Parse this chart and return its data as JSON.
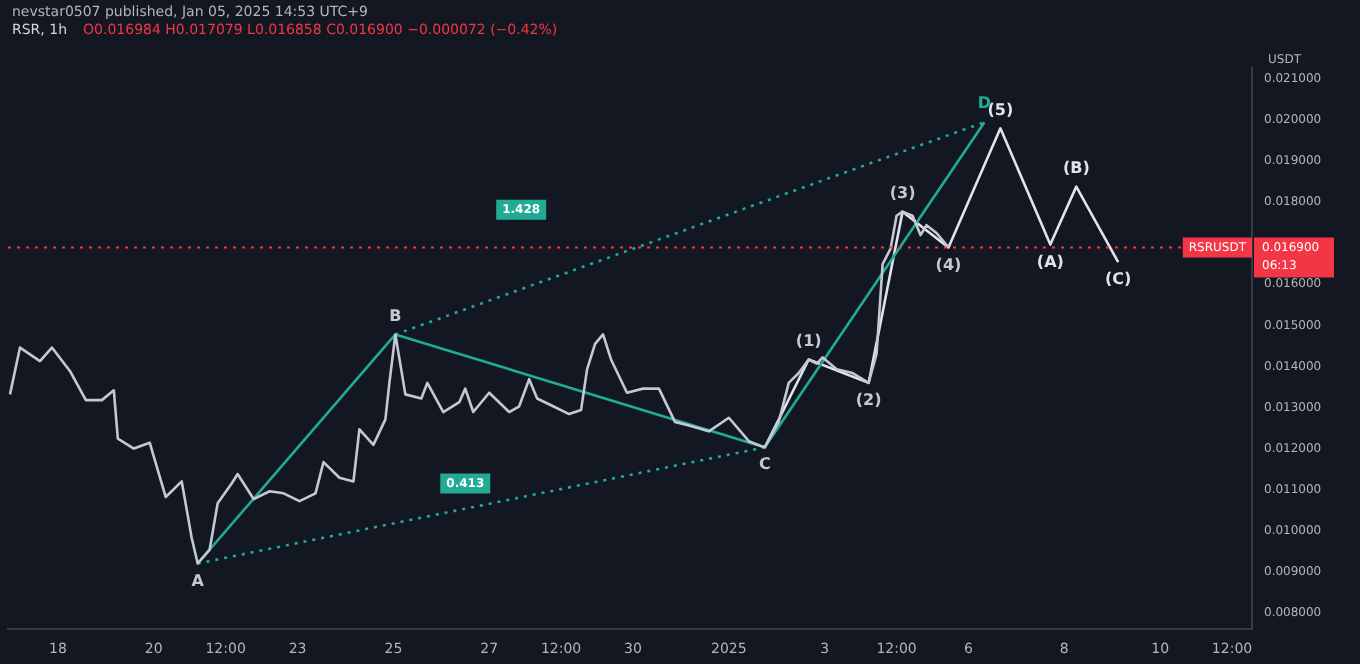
{
  "chart_data": {
    "type": "line",
    "title": "RSR, 1h",
    "subtitle": "O0.016984 H0.017079 L0.016858 C0.016900 −0.000072 (−0.42%)",
    "ylabel": "USDT",
    "annotations": [
      "nevstar0507 published, Jan 05, 2025 14:53 UTC+9",
      "0.016900",
      "06:13",
      {
        "text": "A",
        "x": "2024-12-20T22:00",
        "y": 0.0092
      },
      {
        "text": "B",
        "x": "2024-12-25T01:00",
        "y": 0.01478
      },
      {
        "text": "C",
        "x": "2025-01-01T18:00",
        "y": 0.01203
      },
      {
        "text": "D",
        "x": "2025-01-06T08:00",
        "y": 0.01995
      },
      {
        "text": "0.413",
        "x": "2024-12-26T12:00",
        "y": 0.01115
      },
      {
        "text": "1.428",
        "x": "2024-12-27T16:00",
        "y": 0.01782
      },
      {
        "text": "(1)",
        "x": "2025-01-02T16:00",
        "y": 0.01417
      },
      {
        "text": "(2)",
        "x": "2025-01-03T22:00",
        "y": 0.0136
      },
      {
        "text": "(3)",
        "x": "2025-01-04T15:00",
        "y": 0.01777
      },
      {
        "text": "(4)",
        "x": "2025-01-05T14:00",
        "y": 0.0169
      },
      {
        "text": "(5)",
        "x": "2025-01-06T16:00",
        "y": 0.0198
      },
      {
        "text": "(A)",
        "x": "2025-01-07T17:00",
        "y": 0.01697
      },
      {
        "text": "(B)",
        "x": "2025-01-08T06:00",
        "y": 0.01838
      },
      {
        "text": "(C)",
        "x": "2025-01-09T03:00",
        "y": 0.01654
      }
    ],
    "xlim": [
      "2024-12-16T23:00",
      "2025-01-11T22:00"
    ],
    "xticks": [
      {
        "value": "2024-12-18",
        "label": "18"
      },
      {
        "value": "2024-12-20",
        "label": "20"
      },
      {
        "value": "2024-12-21T12:00",
        "label": "12:00"
      },
      {
        "value": "2024-12-23",
        "label": "23"
      },
      {
        "value": "2024-12-25",
        "label": "25"
      },
      {
        "value": "2024-12-27",
        "label": "27"
      },
      {
        "value": "2024-12-28T12:00",
        "label": "12:00"
      },
      {
        "value": "2024-12-30",
        "label": "30"
      },
      {
        "value": "2025-01-01",
        "label": "2025"
      },
      {
        "value": "2025-01-03",
        "label": "3"
      },
      {
        "value": "2025-01-04T12:00",
        "label": "12:00"
      },
      {
        "value": "2025-01-06",
        "label": "6"
      },
      {
        "value": "2025-01-08",
        "label": "8"
      },
      {
        "value": "2025-01-10",
        "label": "10"
      },
      {
        "value": "2025-01-11T12:00",
        "label": "12:00"
      }
    ],
    "ylim": [
      0.0076,
      0.02127
    ],
    "yticks": [
      {
        "value": 0.008,
        "label": "0.008000"
      },
      {
        "value": 0.009,
        "label": "0.009000"
      },
      {
        "value": 0.01,
        "label": "0.010000"
      },
      {
        "value": 0.011,
        "label": "0.011000"
      },
      {
        "value": 0.012,
        "label": "0.012000"
      },
      {
        "value": 0.013,
        "label": "0.013000"
      },
      {
        "value": 0.014,
        "label": "0.014000"
      },
      {
        "value": 0.015,
        "label": "0.015000"
      },
      {
        "value": 0.016,
        "label": "0.016000"
      },
      {
        "value": 0.018,
        "label": "0.018000"
      },
      {
        "value": 0.019,
        "label": "0.019000"
      },
      {
        "value": 0.02,
        "label": "0.020000"
      },
      {
        "value": 0.021,
        "label": "0.021000"
      }
    ],
    "grid": false,
    "legend": false,
    "marker": "none",
    "ref_lines": [
      {
        "axis": "y",
        "value": 0.0169,
        "label": "RSRUSDT",
        "color": "#f23645",
        "line_style": "dotted"
      }
    ],
    "series": [
      {
        "color": "#c4c8d2",
        "x": [
          "2024-12-17T00:00",
          "2024-12-17T05:00",
          "2024-12-17T15:00",
          "2024-12-17T21:00",
          "2024-12-18T06:00",
          "2024-12-18T14:00",
          "2024-12-18T22:00",
          "2024-12-19T04:00",
          "2024-12-19T06:00",
          "2024-12-19T14:00",
          "2024-12-19T22:00",
          "2024-12-20T06:00",
          "2024-12-20T14:00",
          "2024-12-20T19:00",
          "2024-12-20T22:00",
          "2024-12-21T04:00",
          "2024-12-21T08:00",
          "2024-12-21T15:00",
          "2024-12-21T18:00",
          "2024-12-22T02:00",
          "2024-12-22T10:00",
          "2024-12-22T17:00",
          "2024-12-23T01:00",
          "2024-12-23T09:00",
          "2024-12-23T13:00",
          "2024-12-23T21:00",
          "2024-12-24T04:00",
          "2024-12-24T07:00",
          "2024-12-24T14:00",
          "2024-12-24T20:00",
          "2024-12-24T22:00",
          "2024-12-25T01:00",
          "2024-12-25T06:00",
          "2024-12-25T14:00",
          "2024-12-25T17:00",
          "2024-12-26T01:00",
          "2024-12-26T09:00",
          "2024-12-26T12:00",
          "2024-12-26T16:00",
          "2024-12-27T00:00",
          "2024-12-27T10:00",
          "2024-12-27T15:00",
          "2024-12-27T20:00",
          "2024-12-28T00:00",
          "2024-12-28T08:00",
          "2024-12-28T16:00",
          "2024-12-28T22:00",
          "2024-12-29T01:00",
          "2024-12-29T05:00",
          "2024-12-29T09:00",
          "2024-12-29T13:00",
          "2024-12-29T21:00",
          "2024-12-30T05:00",
          "2024-12-30T13:00",
          "2024-12-30T21:00",
          "2024-12-31T04:00",
          "2024-12-31T14:00",
          "2025-01-01T00:00",
          "2025-01-01T10:00",
          "2025-01-01T18:00",
          "2025-01-02T01:00",
          "2025-01-02T06:00",
          "2025-01-02T11:00",
          "2025-01-02T16:00",
          "2025-01-02T20:00",
          "2025-01-02T23:00",
          "2025-01-03T06:00",
          "2025-01-03T14:00",
          "2025-01-03T22:00",
          "2025-01-04T02:00",
          "2025-01-04T05:00",
          "2025-01-04T09:00",
          "2025-01-04T12:00",
          "2025-01-04T15:00",
          "2025-01-04T20:00",
          "2025-01-05T00:00",
          "2025-01-05T03:00",
          "2025-01-05T08:00",
          "2025-01-05T14:00"
        ],
        "values": [
          0.01332,
          0.01446,
          0.01413,
          0.01446,
          0.01389,
          0.01318,
          0.01318,
          0.01342,
          0.01224,
          0.012,
          0.01214,
          0.01082,
          0.0112,
          0.00982,
          0.0092,
          0.00954,
          0.01067,
          0.01115,
          0.01138,
          0.01077,
          0.01096,
          0.01091,
          0.01072,
          0.01091,
          0.01167,
          0.01129,
          0.0112,
          0.01247,
          0.01209,
          0.01271,
          0.0136,
          0.01478,
          0.01332,
          0.01322,
          0.0136,
          0.01289,
          0.01313,
          0.01346,
          0.01289,
          0.01336,
          0.01289,
          0.01303,
          0.01369,
          0.01322,
          0.01303,
          0.01284,
          0.01294,
          0.01393,
          0.01455,
          0.01478,
          0.01417,
          0.01336,
          0.01346,
          0.01346,
          0.01265,
          0.01256,
          0.01242,
          0.01275,
          0.01218,
          0.01203,
          0.01265,
          0.0136,
          0.01384,
          0.01417,
          0.01407,
          0.01422,
          0.01393,
          0.01384,
          0.0136,
          0.01431,
          0.01649,
          0.01687,
          0.01767,
          0.01777,
          0.01767,
          0.0172,
          0.01744,
          0.01725,
          0.0169
        ]
      },
      {
        "color": "#22ab94",
        "x": [
          "2024-12-20T22:00",
          "2024-12-25T01:00",
          "2025-01-01T18:00",
          "2025-01-06T08:00"
        ],
        "values": [
          0.0092,
          0.01478,
          0.01203,
          0.01995
        ]
      },
      {
        "color": "#22ab94",
        "line_style": "dotted",
        "x": [
          "2024-12-20T22:00",
          "2025-01-01T18:00"
        ],
        "values": [
          0.0092,
          0.01203
        ]
      },
      {
        "color": "#22ab94",
        "line_style": "dotted",
        "x": [
          "2024-12-25T01:00",
          "2025-01-06T08:00"
        ],
        "values": [
          0.01478,
          0.01995
        ]
      },
      {
        "color": "#e0e3eb",
        "x": [
          "2025-01-01T18:00",
          "2025-01-02T16:00",
          "2025-01-03T22:00",
          "2025-01-04T15:00",
          "2025-01-05T14:00",
          "2025-01-06T16:00",
          "2025-01-07T17:00",
          "2025-01-08T06:00",
          "2025-01-09T03:00"
        ],
        "values": [
          0.01203,
          0.01417,
          0.0136,
          0.01777,
          0.0169,
          0.0198,
          0.01697,
          0.01838,
          0.01654
        ]
      }
    ]
  }
}
